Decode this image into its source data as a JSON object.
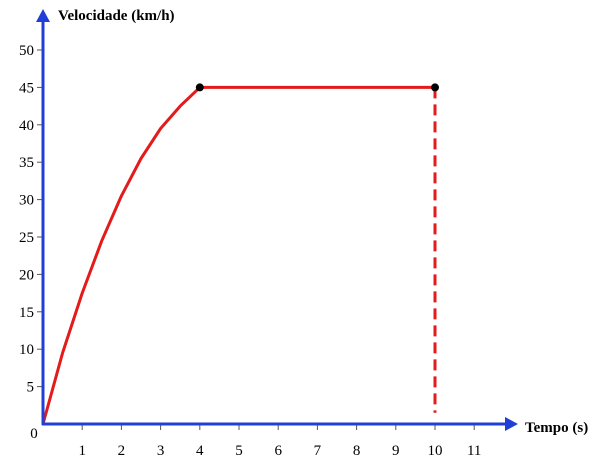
{
  "chart_data": {
    "type": "line",
    "ylabel": "Velocidade (km/h)",
    "xlabel": "Tempo (s)",
    "xlim": [
      0,
      11
    ],
    "ylim": [
      0,
      50
    ],
    "x_ticks": [
      0,
      1,
      2,
      3,
      4,
      5,
      6,
      7,
      8,
      9,
      10,
      11
    ],
    "y_ticks": [
      5,
      10,
      15,
      20,
      25,
      30,
      35,
      40,
      45,
      50
    ],
    "series": [
      {
        "color": "#e31b1b",
        "points": [
          {
            "x": 0,
            "y": 0
          },
          {
            "x": 0.5,
            "y": 9.5
          },
          {
            "x": 1,
            "y": 17.5
          },
          {
            "x": 1.5,
            "y": 24.5
          },
          {
            "x": 2,
            "y": 30.5
          },
          {
            "x": 2.5,
            "y": 35.5
          },
          {
            "x": 3,
            "y": 39.5
          },
          {
            "x": 3.5,
            "y": 42.5
          },
          {
            "x": 4,
            "y": 45
          },
          {
            "x": 10,
            "y": 45
          }
        ]
      }
    ],
    "markers": [
      {
        "x": 4,
        "y": 45
      },
      {
        "x": 10,
        "y": 45
      }
    ],
    "dashed_drop": {
      "x": 10,
      "y_from": 45,
      "y_to": 1.5
    },
    "colors": {
      "axis": "#1f3fd6",
      "line": "#e31b1b",
      "marker": "#000000"
    }
  }
}
